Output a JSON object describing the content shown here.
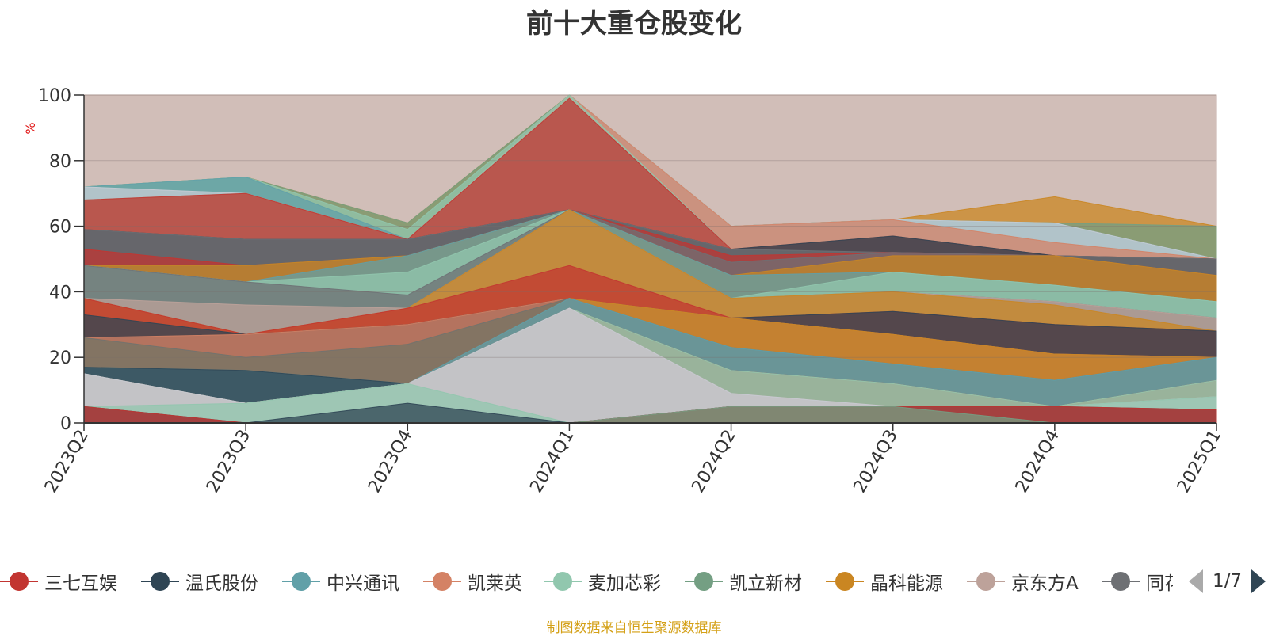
{
  "title": "前十大重仓股变化",
  "source_note": "制图数据来自恒生聚源数据库",
  "legend_page": "1/7",
  "icons": {
    "prev": "arrow-left-icon",
    "next": "arrow-right-icon"
  },
  "legend": [
    {
      "name": "三七互娱",
      "color": "#c23531"
    },
    {
      "name": "温氏股份",
      "color": "#2f4554"
    },
    {
      "name": "中兴通讯",
      "color": "#61a0a8"
    },
    {
      "name": "凯莱英",
      "color": "#d48265"
    },
    {
      "name": "麦加芯彩",
      "color": "#91c7ae"
    },
    {
      "name": "凯立新材",
      "color": "#749f83"
    },
    {
      "name": "晶科能源",
      "color": "#ca8622"
    },
    {
      "name": "京东方A",
      "color": "#bda29a"
    },
    {
      "name": "同花顺",
      "color": "#6e7074"
    }
  ],
  "chart_data": {
    "type": "area",
    "title": "前十大重仓股变化",
    "ylabel": "%",
    "ylim": [
      0,
      100
    ],
    "yticks": [
      0,
      20,
      40,
      60,
      80,
      100
    ],
    "categories": [
      "2023Q2",
      "2023Q3",
      "2023Q4",
      "2024Q1",
      "2024Q2",
      "2024Q3",
      "2024Q4",
      "2025Q1"
    ],
    "grid": true,
    "legend_position": "bottom",
    "layers": [
      {
        "color": "#bda29a",
        "values": [
          100,
          100,
          100,
          100,
          100,
          100,
          100,
          100
        ]
      },
      {
        "color": "#ca8622",
        "values": [
          72,
          75,
          61,
          100,
          60,
          62,
          69,
          60
        ]
      },
      {
        "color": "#749f83",
        "values": [
          72,
          75,
          61,
          100,
          60,
          62,
          61,
          60
        ]
      },
      {
        "color": "#91c7ae",
        "values": [
          72,
          75,
          59,
          100,
          60,
          62,
          61,
          50
        ]
      },
      {
        "color": "#61a0a8",
        "values": [
          72,
          75,
          56,
          100,
          60,
          62,
          61,
          50
        ]
      },
      {
        "color": "#c8ccd4",
        "values": [
          72,
          70,
          56,
          100,
          60,
          62,
          61,
          50
        ]
      },
      {
        "color": "#d48265",
        "values": [
          68,
          70,
          56,
          100,
          60,
          62,
          55,
          50
        ]
      },
      {
        "color": "#91c7ae",
        "values": [
          68,
          70,
          56,
          100,
          53,
          57,
          51,
          50
        ]
      },
      {
        "color": "#c23531",
        "values": [
          68,
          70,
          56,
          99,
          53,
          57,
          51,
          50
        ]
      },
      {
        "color": "#2f4554",
        "values": [
          59,
          56,
          56,
          65,
          53,
          57,
          51,
          50
        ]
      },
      {
        "color": "#6e7074",
        "values": [
          59,
          56,
          56,
          65,
          53,
          52,
          51,
          50
        ]
      },
      {
        "color": "#c23531",
        "values": [
          53,
          48,
          51,
          65,
          51,
          52,
          51,
          45
        ]
      },
      {
        "color": "#6e7074",
        "values": [
          48,
          48,
          51,
          65,
          49,
          52,
          51,
          45
        ]
      },
      {
        "color": "#ca8622",
        "values": [
          48,
          48,
          51,
          65,
          45,
          51,
          51,
          45
        ]
      },
      {
        "color": "#61a0a8",
        "values": [
          48,
          43,
          51,
          65,
          45,
          46,
          42,
          37
        ]
      },
      {
        "color": "#91c7ae",
        "values": [
          48,
          43,
          46,
          65,
          38,
          46,
          42,
          37
        ]
      },
      {
        "color": "#6e7074",
        "values": [
          48,
          43,
          39,
          65,
          38,
          40,
          37,
          32
        ]
      },
      {
        "color": "#bda29a",
        "values": [
          38,
          36,
          35,
          65,
          38,
          40,
          37,
          32
        ]
      },
      {
        "color": "#ca8622",
        "values": [
          38,
          27,
          35,
          65,
          38,
          40,
          36,
          28
        ]
      },
      {
        "color": "#c23531",
        "values": [
          38,
          27,
          35,
          48,
          32,
          34,
          30,
          28
        ]
      },
      {
        "color": "#2f4554",
        "values": [
          33,
          27,
          30,
          38,
          32,
          34,
          30,
          28
        ]
      },
      {
        "color": "#d48265",
        "values": [
          26,
          27,
          30,
          38,
          32,
          27,
          21,
          20
        ]
      },
      {
        "color": "#ca8622",
        "values": [
          26,
          20,
          24,
          38,
          32,
          27,
          21,
          20
        ]
      },
      {
        "color": "#6e7074",
        "values": [
          26,
          20,
          24,
          38,
          23,
          18,
          13,
          20
        ]
      },
      {
        "color": "#61a0a8",
        "values": [
          17,
          16,
          12,
          38,
          23,
          18,
          13,
          20
        ]
      },
      {
        "color": "#2f4554",
        "values": [
          17,
          16,
          12,
          35,
          16,
          12,
          5,
          13
        ]
      },
      {
        "color": "#d48265",
        "values": [
          15,
          6,
          12,
          35,
          16,
          12,
          5,
          13
        ]
      },
      {
        "color": "#91c7ae",
        "values": [
          15,
          6,
          12,
          35,
          16,
          12,
          5,
          13
        ]
      },
      {
        "color": "#bda29a",
        "values": [
          15,
          6,
          12,
          35,
          9,
          5,
          5,
          8
        ]
      },
      {
        "color": "#c8ccd4",
        "values": [
          15,
          6,
          12,
          35,
          9,
          5,
          5,
          8
        ]
      },
      {
        "color": "#91c7ae",
        "values": [
          5,
          6,
          12,
          0,
          5,
          5,
          5,
          8
        ]
      },
      {
        "color": "#2f4554",
        "values": [
          5,
          0,
          6,
          0,
          5,
          5,
          5,
          4
        ]
      },
      {
        "color": "#c23531",
        "values": [
          5,
          0,
          0,
          0,
          5,
          5,
          5,
          4
        ]
      },
      {
        "color": "#749f83",
        "values": [
          0,
          0,
          0,
          0,
          5,
          5,
          0,
          0
        ]
      }
    ]
  }
}
